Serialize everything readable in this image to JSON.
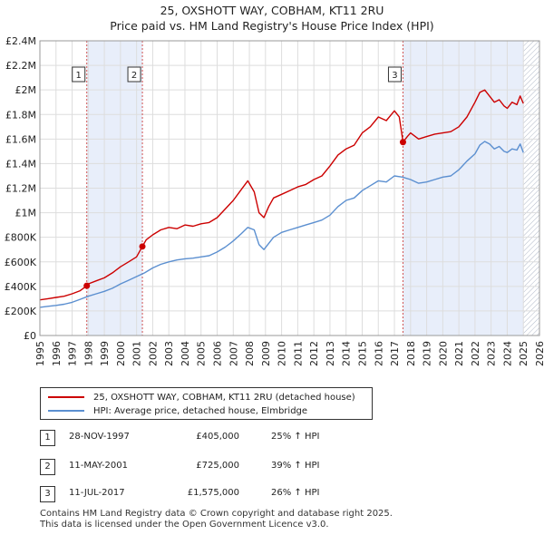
{
  "title": "25, OXSHOTT WAY, COBHAM, KT11 2RU",
  "subtitle": "Price paid vs. HM Land Registry's House Price Index (HPI)",
  "colors": {
    "property": "#cc0000",
    "hpi": "#5b8fd0",
    "shade": "#e8eefa",
    "marker": "#cc0000"
  },
  "chart_data": {
    "type": "line",
    "title": "Price paid vs. HM Land Registry's House Price Index (HPI)",
    "xlabel": "",
    "ylabel": "",
    "xlim": [
      1995,
      2026
    ],
    "ylim": [
      0,
      2400000
    ],
    "y_ticks": [
      {
        "value": 0,
        "label": "£0"
      },
      {
        "value": 200000,
        "label": "£200K"
      },
      {
        "value": 400000,
        "label": "£400K"
      },
      {
        "value": 600000,
        "label": "£600K"
      },
      {
        "value": 800000,
        "label": "£800K"
      },
      {
        "value": 1000000,
        "label": "£1M"
      },
      {
        "value": 1200000,
        "label": "£1.2M"
      },
      {
        "value": 1400000,
        "label": "£1.4M"
      },
      {
        "value": 1600000,
        "label": "£1.6M"
      },
      {
        "value": 1800000,
        "label": "£1.8M"
      },
      {
        "value": 2000000,
        "label": "£2M"
      },
      {
        "value": 2200000,
        "label": "£2.2M"
      },
      {
        "value": 2400000,
        "label": "£2.4M"
      }
    ],
    "x_ticks": [
      1995,
      1996,
      1997,
      1998,
      1999,
      2000,
      2001,
      2002,
      2003,
      2004,
      2005,
      2006,
      2007,
      2008,
      2009,
      2010,
      2011,
      2012,
      2013,
      2014,
      2015,
      2016,
      2017,
      2018,
      2019,
      2020,
      2021,
      2022,
      2023,
      2024,
      2025,
      2026
    ],
    "grid": true,
    "legend_position": "below",
    "hatched_region": [
      2025.0,
      2026.0
    ],
    "series": [
      {
        "name": "25, OXSHOTT WAY, COBHAM, KT11 2RU (detached house)",
        "color": "#cc0000",
        "x": [
          1995.0,
          1995.5,
          1996.0,
          1996.5,
          1997.0,
          1997.5,
          1997.91,
          1998.0,
          1998.5,
          1999.0,
          1999.5,
          2000.0,
          2000.5,
          2001.0,
          2001.36,
          2001.6,
          2002.0,
          2002.5,
          2003.0,
          2003.5,
          2004.0,
          2004.5,
          2005.0,
          2005.5,
          2006.0,
          2006.5,
          2007.0,
          2007.5,
          2007.9,
          2008.3,
          2008.6,
          2008.9,
          2009.2,
          2009.5,
          2010.0,
          2010.5,
          2011.0,
          2011.5,
          2012.0,
          2012.5,
          2013.0,
          2013.5,
          2014.0,
          2014.5,
          2015.0,
          2015.5,
          2016.0,
          2016.5,
          2017.0,
          2017.3,
          2017.53,
          2017.8,
          2018.0,
          2018.5,
          2019.0,
          2019.5,
          2020.0,
          2020.5,
          2021.0,
          2021.5,
          2022.0,
          2022.3,
          2022.6,
          2022.9,
          2023.2,
          2023.5,
          2023.8,
          2024.0,
          2024.3,
          2024.6,
          2024.8,
          2025.0
        ],
        "values": [
          290000,
          300000,
          310000,
          320000,
          340000,
          365000,
          405000,
          420000,
          445000,
          470000,
          510000,
          560000,
          600000,
          640000,
          725000,
          780000,
          820000,
          860000,
          880000,
          870000,
          900000,
          890000,
          910000,
          920000,
          960000,
          1030000,
          1100000,
          1190000,
          1260000,
          1170000,
          1000000,
          960000,
          1050000,
          1120000,
          1150000,
          1180000,
          1210000,
          1230000,
          1270000,
          1300000,
          1380000,
          1470000,
          1520000,
          1550000,
          1650000,
          1700000,
          1780000,
          1750000,
          1830000,
          1780000,
          1575000,
          1620000,
          1650000,
          1600000,
          1620000,
          1640000,
          1650000,
          1660000,
          1700000,
          1780000,
          1900000,
          1980000,
          2000000,
          1950000,
          1900000,
          1920000,
          1870000,
          1850000,
          1900000,
          1880000,
          1950000,
          1890000
        ]
      },
      {
        "name": "HPI: Average price, detached house, Elmbridge",
        "color": "#5b8fd0",
        "x": [
          1995.0,
          1995.5,
          1996.0,
          1996.5,
          1997.0,
          1997.5,
          1998.0,
          1998.5,
          1999.0,
          1999.5,
          2000.0,
          2000.5,
          2001.0,
          2001.5,
          2002.0,
          2002.5,
          2003.0,
          2003.5,
          2004.0,
          2004.5,
          2005.0,
          2005.5,
          2006.0,
          2006.5,
          2007.0,
          2007.5,
          2007.9,
          2008.3,
          2008.6,
          2008.9,
          2009.2,
          2009.5,
          2010.0,
          2010.5,
          2011.0,
          2011.5,
          2012.0,
          2012.5,
          2013.0,
          2013.5,
          2014.0,
          2014.5,
          2015.0,
          2015.5,
          2016.0,
          2016.5,
          2017.0,
          2017.5,
          2018.0,
          2018.5,
          2019.0,
          2019.5,
          2020.0,
          2020.5,
          2021.0,
          2021.5,
          2022.0,
          2022.3,
          2022.6,
          2022.9,
          2023.2,
          2023.5,
          2023.8,
          2024.0,
          2024.3,
          2024.6,
          2024.8,
          2025.0
        ],
        "values": [
          230000,
          238000,
          245000,
          255000,
          270000,
          295000,
          320000,
          340000,
          360000,
          385000,
          420000,
          450000,
          480000,
          510000,
          550000,
          580000,
          600000,
          615000,
          625000,
          630000,
          640000,
          650000,
          680000,
          720000,
          770000,
          830000,
          880000,
          860000,
          740000,
          700000,
          750000,
          800000,
          840000,
          860000,
          880000,
          900000,
          920000,
          940000,
          980000,
          1050000,
          1100000,
          1120000,
          1180000,
          1220000,
          1260000,
          1250000,
          1300000,
          1290000,
          1270000,
          1240000,
          1250000,
          1270000,
          1290000,
          1300000,
          1350000,
          1420000,
          1480000,
          1550000,
          1580000,
          1560000,
          1520000,
          1540000,
          1500000,
          1490000,
          1520000,
          1510000,
          1560000,
          1490000
        ]
      }
    ],
    "sales": [
      {
        "label": "1",
        "x": 1997.91,
        "value": 405000
      },
      {
        "label": "2",
        "x": 2001.36,
        "value": 725000
      },
      {
        "label": "3",
        "x": 2017.53,
        "value": 1575000
      }
    ]
  },
  "legend": {
    "property_label": "25, OXSHOTT WAY, COBHAM, KT11 2RU (detached house)",
    "hpi_label": "HPI: Average price, detached house, Elmbridge"
  },
  "transactions": [
    {
      "num": "1",
      "date": "28-NOV-1997",
      "price": "£405,000",
      "hpi": "25% ↑ HPI"
    },
    {
      "num": "2",
      "date": "11-MAY-2001",
      "price": "£725,000",
      "hpi": "39% ↑ HPI"
    },
    {
      "num": "3",
      "date": "11-JUL-2017",
      "price": "£1,575,000",
      "hpi": "26% ↑ HPI"
    }
  ],
  "footer": {
    "line1": "Contains HM Land Registry data © Crown copyright and database right 2025.",
    "line2": "This data is licensed under the Open Government Licence v3.0."
  }
}
